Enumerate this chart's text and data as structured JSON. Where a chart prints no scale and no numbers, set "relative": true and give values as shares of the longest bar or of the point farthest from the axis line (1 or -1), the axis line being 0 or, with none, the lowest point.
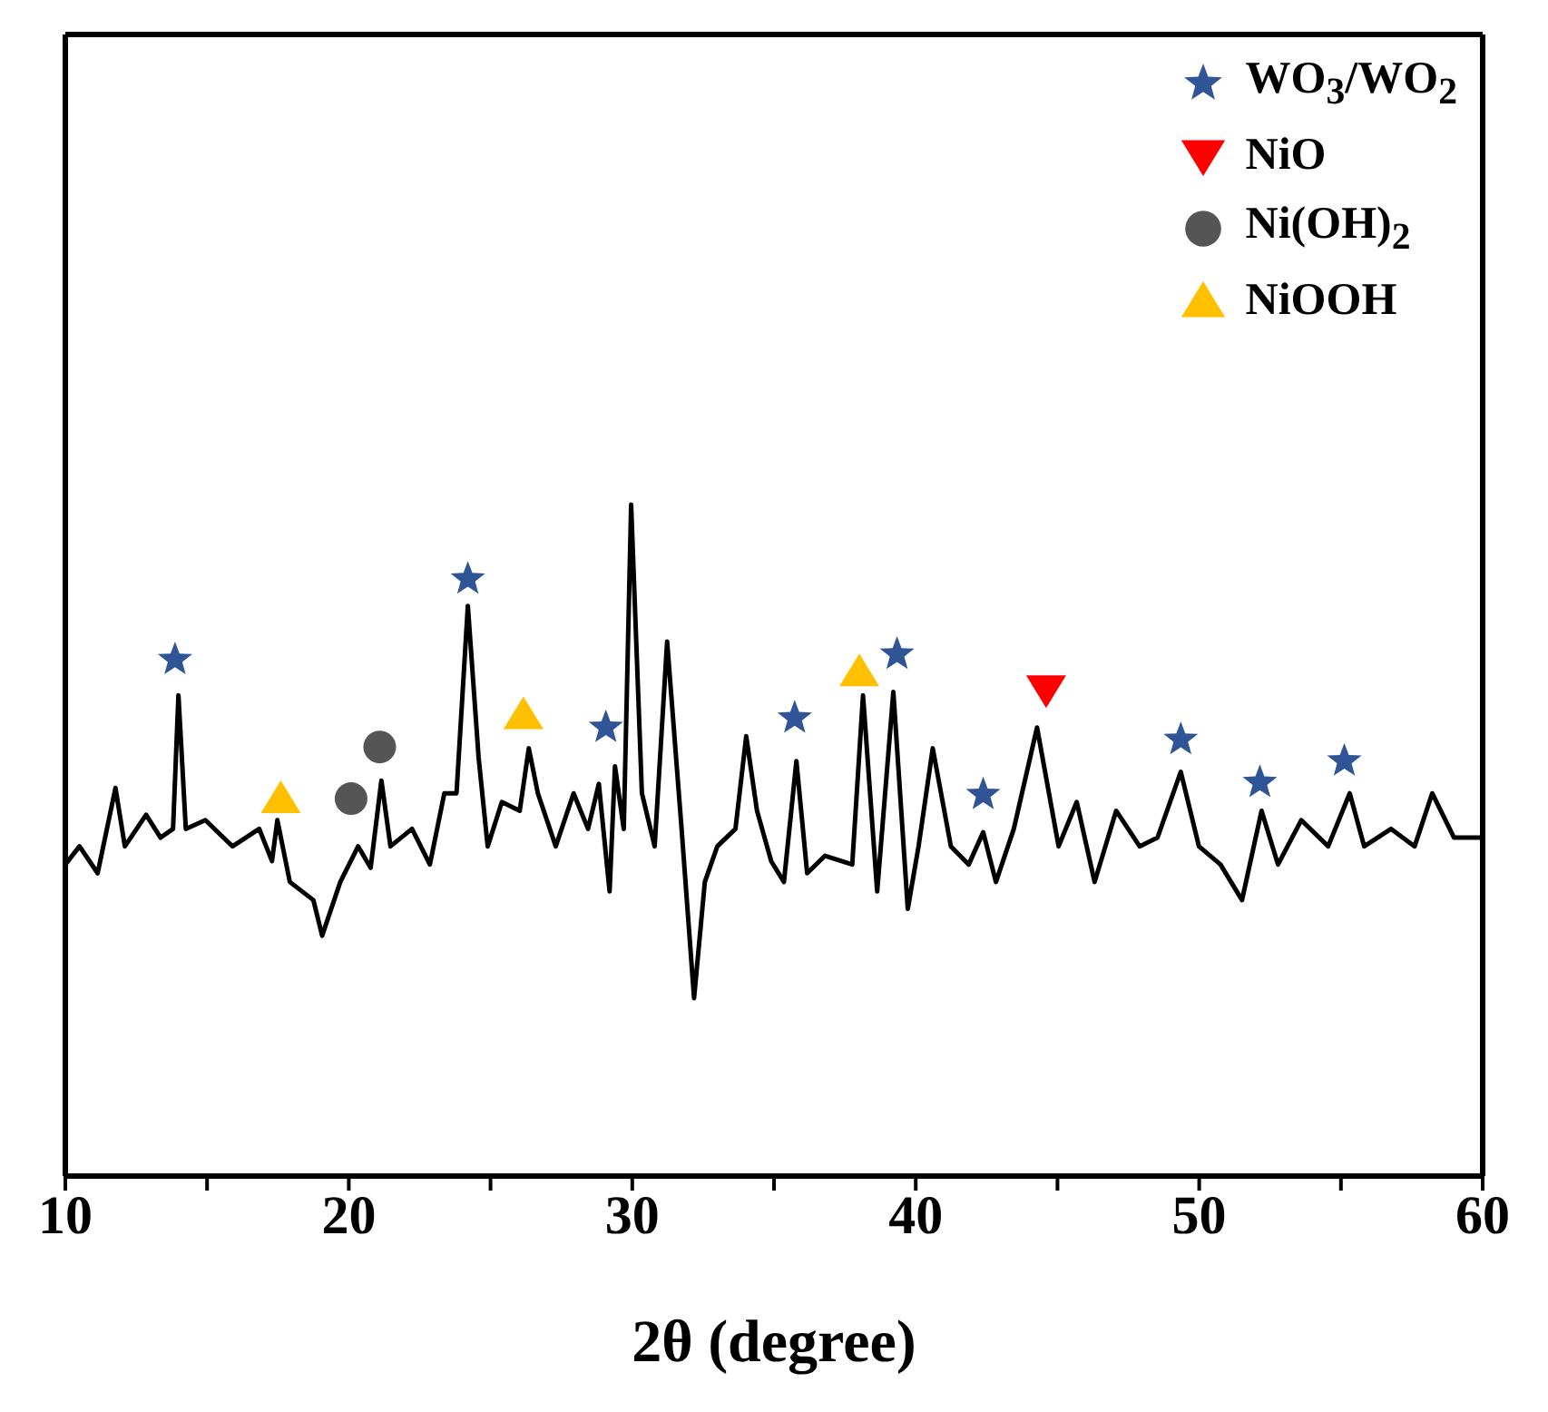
{
  "chart_data": {
    "type": "line",
    "relative": true,
    "xlabel": "2θ (degree)",
    "xlim": [
      10,
      60
    ],
    "xticks": [
      10,
      {
        "value": 15,
        "label": null
      },
      20,
      {
        "value": 25,
        "label": null
      },
      30,
      {
        "value": 35,
        "label": null
      },
      40,
      {
        "value": 45,
        "label": null
      },
      50,
      {
        "value": 55,
        "label": null
      },
      60
    ],
    "legend": "top right",
    "grid": false,
    "marker": "none",
    "line_style": "solid",
    "series": [
      {
        "color": "#000000",
        "x": [
          10,
          10.5,
          11.14,
          11.77,
          12.1,
          12.85,
          13.36,
          13.8,
          13.99,
          14.25,
          14.94,
          15.9,
          16.84,
          17.29,
          17.48,
          17.92,
          18.75,
          19.06,
          19.7,
          20.33,
          20.77,
          21.15,
          21.47,
          22.23,
          22.86,
          23.37,
          23.8,
          24.2,
          24.58,
          24.9,
          25.4,
          26.03,
          26.35,
          26.67,
          27.3,
          27.93,
          28.44,
          28.82,
          29.2,
          29.39,
          29.7,
          29.96,
          30.34,
          30.79,
          31.23,
          31.74,
          32.18,
          32.56,
          33.0,
          33.64,
          34.02,
          34.4,
          34.9,
          35.35,
          35.79,
          36.17,
          36.8,
          37.76,
          38.14,
          38.64,
          39.21,
          39.72,
          40.1,
          40.6,
          41.24,
          41.87,
          42.38,
          42.83,
          43.46,
          44.28,
          45.04,
          45.68,
          46.31,
          47.07,
          47.9,
          48.53,
          49.35,
          49.99,
          50.75,
          51.51,
          52.2,
          52.78,
          53.6,
          54.55,
          55.31,
          55.82,
          56.77,
          57.6,
          58.22,
          58.99,
          60
        ],
        "values": [
          0.464,
          0.491,
          0.451,
          0.578,
          0.491,
          0.538,
          0.504,
          0.517,
          0.716,
          0.517,
          0.53,
          0.491,
          0.517,
          0.469,
          0.53,
          0.438,
          0.411,
          0.358,
          0.438,
          0.491,
          0.459,
          0.589,
          0.491,
          0.517,
          0.464,
          0.57,
          0.57,
          0.849,
          0.623,
          0.491,
          0.557,
          0.544,
          0.637,
          0.57,
          0.491,
          0.57,
          0.517,
          0.584,
          0.424,
          0.61,
          0.517,
          1.0,
          0.57,
          0.491,
          0.796,
          0.517,
          0.265,
          0.438,
          0.491,
          0.517,
          0.655,
          0.544,
          0.469,
          0.438,
          0.618,
          0.451,
          0.477,
          0.464,
          0.716,
          0.424,
          0.721,
          0.398,
          0.491,
          0.637,
          0.491,
          0.464,
          0.512,
          0.438,
          0.517,
          0.668,
          0.491,
          0.557,
          0.438,
          0.544,
          0.491,
          0.504,
          0.602,
          0.491,
          0.464,
          0.411,
          0.544,
          0.464,
          0.53,
          0.491,
          0.57,
          0.491,
          0.517,
          0.491,
          0.57,
          0.504,
          0.504
        ]
      },
      {
        "type": "scatter",
        "name": "WO$_{3}$/WO$_{2}$",
        "color": "#2f5597",
        "marker": "star",
        "x": [
          13.87,
          24.2,
          29.07,
          35.73,
          39.34,
          42.38,
          49.35,
          52.14,
          55.12
        ],
        "values": [
          0.769,
          0.889,
          0.668,
          0.682,
          0.777,
          0.568,
          0.65,
          0.586,
          0.618
        ]
      },
      {
        "type": "scatter",
        "name": "NiO",
        "color": "#ff0000",
        "marker": "triangle-down",
        "x": [
          44.6
        ],
        "values": [
          0.724
        ]
      },
      {
        "type": "scatter",
        "name": "Ni(OH)$_{2}$",
        "color": "#555555",
        "marker": "circle",
        "x": [
          20.08,
          21.09
        ],
        "values": [
          0.562,
          0.639
        ]
      },
      {
        "type": "scatter",
        "name": "NiOOH",
        "color": "#ffc000",
        "marker": "triangle",
        "x": [
          17.6,
          26.16,
          38.01
        ],
        "values": [
          0.562,
          0.687,
          0.751
        ]
      }
    ]
  }
}
